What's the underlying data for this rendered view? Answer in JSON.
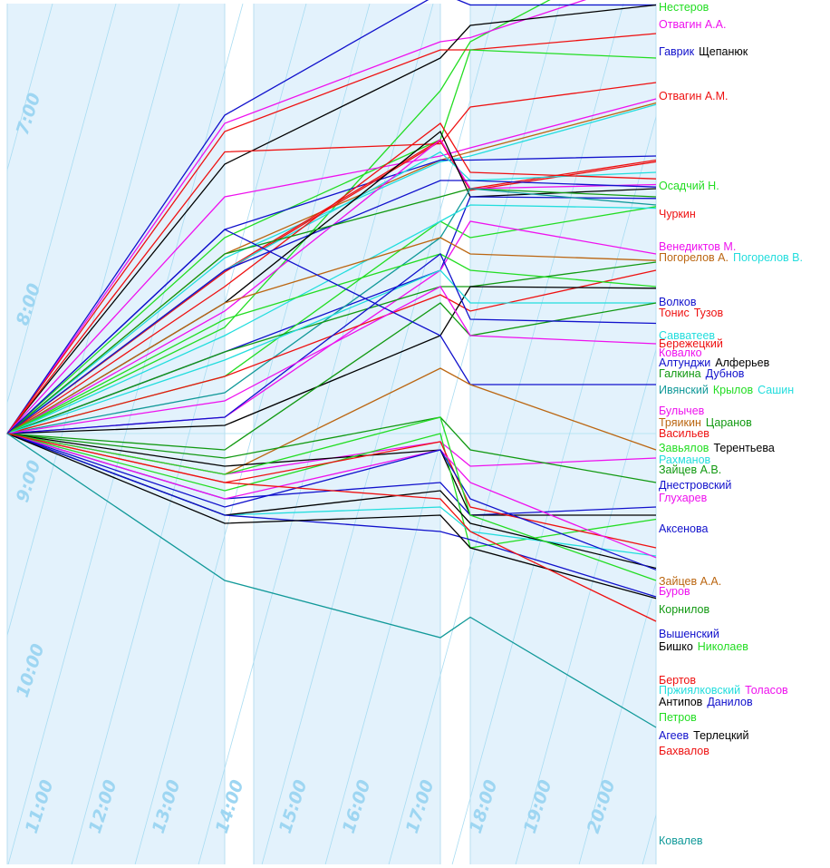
{
  "chart_data": {
    "type": "line",
    "colors": {
      "band": "#e3f2fc",
      "gap": "#ffffff",
      "diagonal": "#a8dcf2",
      "hour_label": "#9ed6f2",
      "baseline": "#b8e6f5"
    },
    "hour_labels": [
      "7:00",
      "8:00",
      "9:00",
      "10:00",
      "11:00",
      "12:00",
      "13:00",
      "14:00",
      "15:00",
      "16:00",
      "17:00",
      "18:00",
      "19:00",
      "20:00"
    ],
    "x": [
      0,
      1,
      2,
      3,
      4
    ],
    "series": [
      {
        "name": "Нестеров",
        "color": "#22dd22",
        "y": [
          400,
          530,
          820,
          880,
          1000
        ]
      },
      {
        "name": "Отвагин А.А.",
        "color": "#ee11ee",
        "y": [
          400,
          780,
          880,
          885,
          960
        ]
      },
      {
        "name": "Гаврик",
        "color": "#1111cc",
        "y": [
          400,
          790,
          940,
          925,
          925
        ]
      },
      {
        "name": "Щепанюк",
        "color": "#000000",
        "y": [
          400,
          730,
          860,
          900,
          925
        ]
      },
      {
        "name": "Отвагин А.М.",
        "color": "#ee1111",
        "y": [
          400,
          770,
          870,
          870,
          890
        ]
      },
      {
        "name": "Осадчий Н.",
        "color": "#22dd22",
        "y": [
          400,
          640,
          760,
          870,
          860
        ]
      },
      {
        "name": "Чуркин",
        "color": "#ee1111",
        "y": [
          400,
          745,
          755,
          800,
          830
        ]
      },
      {
        "name": "Венедиктов М.",
        "color": "#ee11ee",
        "y": [
          400,
          690,
          740,
          750,
          810
        ]
      },
      {
        "name": "Погорелов А.",
        "color": "#bb6611",
        "y": [
          400,
          620,
          735,
          745,
          805
        ]
      },
      {
        "name": "Погорелов В.",
        "color": "#22dddd",
        "y": [
          400,
          615,
          733,
          740,
          803
        ]
      },
      {
        "name": "Волков",
        "color": "#1111cc",
        "y": [
          400,
          650,
          735,
          735,
          740
        ]
      },
      {
        "name": "Тонис",
        "color": "#ee1111",
        "y": [
          400,
          600,
          760,
          700,
          735
        ]
      },
      {
        "name": "Тузов",
        "color": "#ee1111",
        "y": [
          400,
          598,
          758,
          698,
          733
        ]
      },
      {
        "name": "Савватеев",
        "color": "#22dddd",
        "y": [
          400,
          600,
          745,
          710,
          720
        ]
      },
      {
        "name": "Бережецкий",
        "color": "#ee1111",
        "y": [
          400,
          580,
          780,
          720,
          712
        ]
      },
      {
        "name": "Ковалко",
        "color": "#ee11ee",
        "y": [
          400,
          550,
          760,
          700,
          705
        ]
      },
      {
        "name": "Алтунджи",
        "color": "#1111cc",
        "y": [
          400,
          600,
          710,
          710,
          702
        ]
      },
      {
        "name": "Алферьев",
        "color": "#000000",
        "y": [
          400,
          560,
          770,
          690,
          700
        ]
      },
      {
        "name": "Галкина",
        "color": "#119911",
        "y": [
          400,
          620,
          690,
          700,
          690
        ]
      },
      {
        "name": "Дубнов",
        "color": "#1111cc",
        "y": [
          400,
          500,
          600,
          690,
          688
        ]
      },
      {
        "name": "Ивянский",
        "color": "#119999",
        "y": [
          400,
          450,
          640,
          700,
          680
        ]
      },
      {
        "name": "Крылов",
        "color": "#22dd22",
        "y": [
          400,
          470,
          660,
          640,
          678
        ]
      },
      {
        "name": "Сашин",
        "color": "#22dddd",
        "y": [
          400,
          520,
          660,
          680,
          676
        ]
      },
      {
        "name": "Булычев",
        "color": "#ee11ee",
        "y": [
          400,
          420,
          600,
          660,
          620
        ]
      },
      {
        "name": "Тряикин",
        "color": "#bb6611",
        "y": [
          400,
          560,
          640,
          620,
          612
        ]
      },
      {
        "name": "Царанов",
        "color": "#119911",
        "y": [
          400,
          500,
          580,
          580,
          610
        ]
      },
      {
        "name": "Васильев",
        "color": "#ee1111",
        "y": [
          400,
          470,
          570,
          550,
          600
        ]
      },
      {
        "name": "Завьялов",
        "color": "#22dd22",
        "y": [
          400,
          540,
          620,
          600,
          580
        ]
      },
      {
        "name": "Терентьева",
        "color": "#000000",
        "y": [
          400,
          410,
          520,
          580,
          578
        ]
      },
      {
        "name": "Рахманов",
        "color": "#22dddd",
        "y": [
          400,
          490,
          600,
          560,
          560
        ]
      },
      {
        "name": "Зайцев А.В.",
        "color": "#119911",
        "y": [
          400,
          380,
          560,
          520,
          560
        ]
      },
      {
        "name": "Днестровский",
        "color": "#1111cc",
        "y": [
          400,
          420,
          620,
          540,
          535
        ]
      },
      {
        "name": "Глухарев",
        "color": "#ee11ee",
        "y": [
          400,
          440,
          580,
          520,
          510
        ]
      },
      {
        "name": "Аксенова",
        "color": "#1111cc",
        "y": [
          400,
          650,
          520,
          460,
          460
        ]
      },
      {
        "name": "Зайцев А.А.",
        "color": "#bb6611",
        "y": [
          400,
          350,
          480,
          460,
          380
        ]
      },
      {
        "name": "Буров",
        "color": "#ee11ee",
        "y": [
          400,
          350,
          390,
          360,
          370
        ]
      },
      {
        "name": "Корнилов",
        "color": "#119911",
        "y": [
          400,
          370,
          420,
          380,
          340
        ]
      },
      {
        "name": "Вышенский",
        "color": "#1111cc",
        "y": [
          400,
          320,
          340,
          300,
          310
        ]
      },
      {
        "name": "Бишко",
        "color": "#000000",
        "y": [
          400,
          360,
          380,
          300,
          300
        ]
      },
      {
        "name": "Николаев",
        "color": "#22dd22",
        "y": [
          400,
          330,
          400,
          260,
          295
        ]
      },
      {
        "name": "Бертов",
        "color": "#ee1111",
        "y": [
          400,
          340,
          390,
          310,
          260
        ]
      },
      {
        "name": "Пржиялковский",
        "color": "#22dddd",
        "y": [
          400,
          300,
          310,
          280,
          250
        ]
      },
      {
        "name": "Толасов",
        "color": "#ee11ee",
        "y": [
          400,
          320,
          380,
          340,
          248
        ]
      },
      {
        "name": "Антипов",
        "color": "#000000",
        "y": [
          400,
          300,
          330,
          290,
          235
        ]
      },
      {
        "name": "Данилов",
        "color": "#1111cc",
        "y": [
          400,
          310,
          380,
          320,
          233
        ]
      },
      {
        "name": "Петров",
        "color": "#22dd22",
        "y": [
          400,
          350,
          420,
          300,
          220
        ]
      },
      {
        "name": "Агеев",
        "color": "#1111cc",
        "y": [
          400,
          300,
          280,
          270,
          200
        ]
      },
      {
        "name": "Терлецкий",
        "color": "#000000",
        "y": [
          400,
          290,
          300,
          260,
          198
        ]
      },
      {
        "name": "Бахвалов",
        "color": "#ee1111",
        "y": [
          400,
          340,
          320,
          280,
          170
        ]
      },
      {
        "name": "Ковалев",
        "color": "#119999",
        "y": [
          400,
          220,
          150,
          175,
          40
        ]
      }
    ],
    "label_rows": [
      [
        {
          "text": "Нестеров",
          "color": "#22dd22"
        }
      ],
      [
        {
          "text": "Отвагин А.А.",
          "color": "#ee11ee"
        }
      ],
      [
        {
          "text": "Гаврик",
          "color": "#1111cc"
        },
        {
          "text": "Щепанюк",
          "color": "#000000"
        }
      ],
      [
        {
          "text": "Отвагин А.М.",
          "color": "#ee1111"
        }
      ],
      [
        {
          "text": "Осадчий Н.",
          "color": "#22dd22"
        }
      ],
      [
        {
          "text": "Чуркин",
          "color": "#ee1111"
        }
      ],
      [
        {
          "text": "Венедиктов М.",
          "color": "#ee11ee"
        }
      ],
      [
        {
          "text": "Погорелов А.",
          "color": "#bb6611"
        },
        {
          "text": "Погорелов В.",
          "color": "#22dddd"
        }
      ],
      [
        {
          "text": "Волков",
          "color": "#1111cc"
        }
      ],
      [
        {
          "text": "Тонис",
          "color": "#ee1111"
        },
        {
          "text": "Тузов",
          "color": "#ee1111"
        }
      ],
      [
        {
          "text": "Савватеев",
          "color": "#22dddd"
        }
      ],
      [
        {
          "text": "Бережецкий",
          "color": "#ee1111"
        }
      ],
      [
        {
          "text": "Ковалко",
          "color": "#ee11ee"
        }
      ],
      [
        {
          "text": "Алтунджи",
          "color": "#1111cc"
        },
        {
          "text": "Алферьев",
          "color": "#000000"
        }
      ],
      [
        {
          "text": "Галкина",
          "color": "#119911"
        },
        {
          "text": "Дубнов",
          "color": "#1111cc"
        }
      ],
      [
        {
          "text": "Ивянский",
          "color": "#119999"
        },
        {
          "text": "Крылов",
          "color": "#22dd22"
        },
        {
          "text": "Сашин",
          "color": "#22dddd"
        }
      ],
      [
        {
          "text": "Булычев",
          "color": "#ee11ee"
        }
      ],
      [
        {
          "text": "Тряикин",
          "color": "#bb6611"
        },
        {
          "text": "Царанов",
          "color": "#119911"
        }
      ],
      [
        {
          "text": "Васильев",
          "color": "#ee1111"
        }
      ],
      [
        {
          "text": "Завьялов",
          "color": "#22dd22"
        },
        {
          "text": "Терентьева",
          "color": "#000000"
        }
      ],
      [
        {
          "text": "Рахманов",
          "color": "#22dddd"
        }
      ],
      [
        {
          "text": "Зайцев А.В.",
          "color": "#119911"
        }
      ],
      [
        {
          "text": "Днестровский",
          "color": "#1111cc"
        }
      ],
      [
        {
          "text": "Глухарев",
          "color": "#ee11ee"
        }
      ],
      [
        {
          "text": "Аксенова",
          "color": "#1111cc"
        }
      ],
      [
        {
          "text": "Зайцев А.А.",
          "color": "#bb6611"
        }
      ],
      [
        {
          "text": "Буров",
          "color": "#ee11ee"
        }
      ],
      [
        {
          "text": "Корнилов",
          "color": "#119911"
        }
      ],
      [
        {
          "text": "Вышенский",
          "color": "#1111cc"
        }
      ],
      [
        {
          "text": "Бишко",
          "color": "#000000"
        },
        {
          "text": "Николаев",
          "color": "#22dd22"
        }
      ],
      [
        {
          "text": "Бертов",
          "color": "#ee1111"
        }
      ],
      [
        {
          "text": "Пржиялковский",
          "color": "#22dddd"
        },
        {
          "text": "Толасов",
          "color": "#ee11ee"
        }
      ],
      [
        {
          "text": "Антипов",
          "color": "#000000"
        },
        {
          "text": "Данилов",
          "color": "#1111cc"
        }
      ],
      [
        {
          "text": "Петров",
          "color": "#22dd22"
        }
      ],
      [
        {
          "text": "Агеев",
          "color": "#1111cc"
        },
        {
          "text": "Терлецкий",
          "color": "#000000"
        }
      ],
      [
        {
          "text": "Бахвалов",
          "color": "#ee1111"
        }
      ],
      [
        {
          "text": "Ковалев",
          "color": "#119999"
        }
      ]
    ]
  }
}
